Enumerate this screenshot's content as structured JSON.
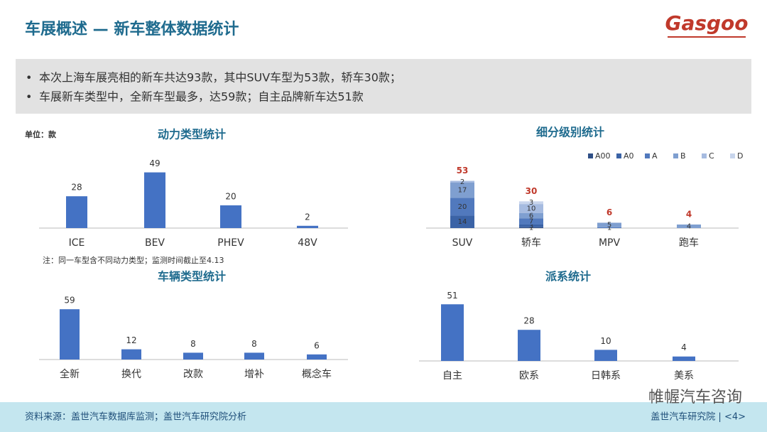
{
  "header": {
    "title": "车展概述 — 新车整体数据统计",
    "logo": "Gasgoo"
  },
  "bullets": [
    "本次上海车展亮相的新车共达93款，其中SUV车型为53款，轿车30款；",
    "车展新车类型中，全新车型最多，达59款；自主品牌新车达51款"
  ],
  "footer": {
    "source": "资料来源：盖世汽车数据库监测；盖世汽车研究院分析",
    "page": "盖世汽车研究院 | <4>",
    "watermark": "帷幄汽车咨询"
  },
  "chart_data": [
    {
      "type": "bar",
      "title": "动力类型统计",
      "unit": "单位：款",
      "note": "注：同一车型含不同动力类型；监测时间截止至4.13",
      "categories": [
        "ICE",
        "BEV",
        "PHEV",
        "48V"
      ],
      "values": [
        28,
        49,
        20,
        2
      ],
      "color": "#4472c4",
      "ylim": [
        0,
        55
      ]
    },
    {
      "type": "stacked_bar",
      "title": "细分级别统计",
      "categories": [
        "SUV",
        "轿车",
        "MPV",
        "跑车"
      ],
      "totals": [
        53,
        30,
        6,
        4
      ],
      "ylim": [
        0,
        55
      ],
      "series": [
        {
          "name": "A00",
          "color": "#2f4f86",
          "values": [
            0,
            1,
            0,
            0
          ]
        },
        {
          "name": "A0",
          "color": "#3b63a6",
          "values": [
            14,
            3,
            0,
            0
          ]
        },
        {
          "name": "A",
          "color": "#5179bd",
          "values": [
            20,
            7,
            1,
            0
          ]
        },
        {
          "name": "B",
          "color": "#7f9fd0",
          "values": [
            17,
            6,
            5,
            4
          ]
        },
        {
          "name": "C",
          "color": "#a6bbe0",
          "values": [
            2,
            10,
            0,
            0
          ]
        },
        {
          "name": "D",
          "color": "#c8d5ec",
          "values": [
            0,
            3,
            0,
            0
          ]
        }
      ]
    },
    {
      "type": "bar",
      "title": "车辆类型统计",
      "categories": [
        "全新",
        "换代",
        "改款",
        "增补",
        "概念车"
      ],
      "values": [
        59,
        12,
        8,
        8,
        6
      ],
      "color": "#4472c4",
      "ylim": [
        0,
        60
      ]
    },
    {
      "type": "bar",
      "title": "派系统计",
      "categories": [
        "自主",
        "欧系",
        "日韩系",
        "美系"
      ],
      "values": [
        51,
        28,
        10,
        4
      ],
      "color": "#4472c4",
      "ylim": [
        0,
        55
      ]
    }
  ]
}
